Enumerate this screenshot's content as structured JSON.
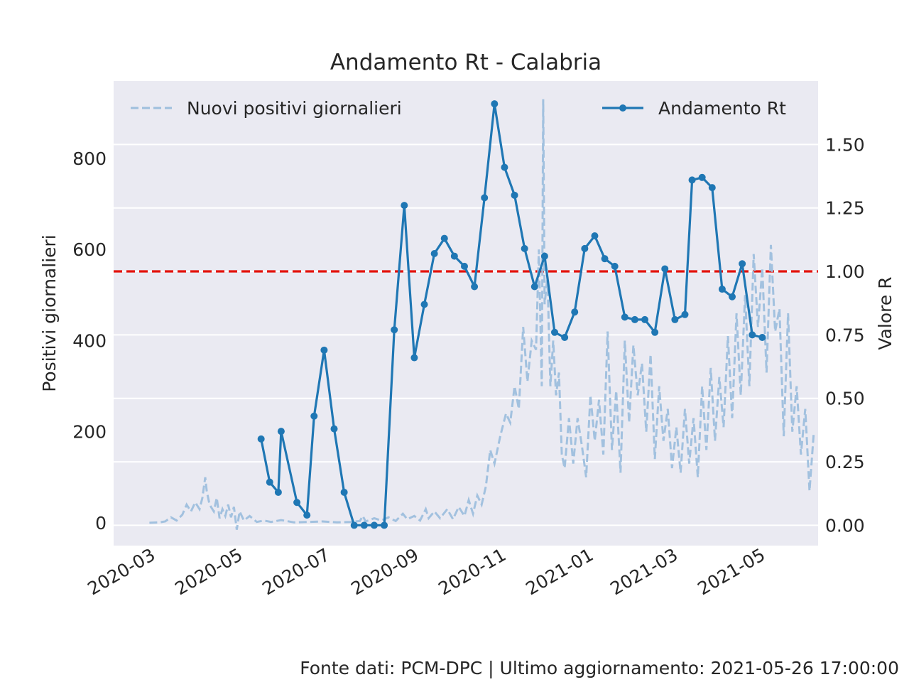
{
  "footer": "Fonte dati: PCM-DPC | Ultimo aggiornamento: 2021-05-26 17:00:00",
  "chart_data": {
    "type": "line",
    "title": "Andamento Rt - Calabria",
    "xlabel": "",
    "ylabel": "Positivi giornalieri",
    "ylabel_right": "Valore R",
    "xlim": [
      "2020-02-05",
      "2021-06-11"
    ],
    "ylim": [
      -50,
      970
    ],
    "ylim_right": [
      -0.08,
      1.75
    ],
    "x_ticks": [
      "2020-03",
      "2020-05",
      "2020-07",
      "2020-09",
      "2020-11",
      "2021-01",
      "2021-03",
      "2021-05"
    ],
    "y_ticks": [
      0,
      200,
      400,
      600,
      800
    ],
    "y_ticks_right": [
      "0.00",
      "0.25",
      "0.50",
      "0.75",
      "1.00",
      "1.25",
      "1.50"
    ],
    "grid": true,
    "reference_line": {
      "axis": "right",
      "value": 1.0,
      "color": "#e3120b",
      "style": "dashed"
    },
    "legend": [
      {
        "name": "Nuovi positivi giornalieri",
        "placement": "top-left"
      },
      {
        "name": "Andamento Rt",
        "placement": "top-right"
      }
    ],
    "colors": {
      "plot_bg": "#eaeaf2",
      "grid": "#ffffff",
      "rt": "#1f77b4",
      "daily": "#9ebfdd",
      "reference": "#e3120b"
    },
    "series": [
      {
        "name": "Nuovi positivi giornalieri",
        "axis": "left",
        "style": "dashed",
        "points": [
          [
            "2020-03-01",
            0
          ],
          [
            "2020-03-08",
            1
          ],
          [
            "2020-03-12",
            3
          ],
          [
            "2020-03-16",
            12
          ],
          [
            "2020-03-20",
            5
          ],
          [
            "2020-03-24",
            18
          ],
          [
            "2020-03-27",
            40
          ],
          [
            "2020-03-30",
            25
          ],
          [
            "2020-04-02",
            45
          ],
          [
            "2020-04-05",
            30
          ],
          [
            "2020-04-07",
            55
          ],
          [
            "2020-04-09",
            100
          ],
          [
            "2020-04-10",
            70
          ],
          [
            "2020-04-12",
            40
          ],
          [
            "2020-04-15",
            25
          ],
          [
            "2020-04-17",
            55
          ],
          [
            "2020-04-19",
            10
          ],
          [
            "2020-04-21",
            30
          ],
          [
            "2020-04-23",
            15
          ],
          [
            "2020-04-25",
            40
          ],
          [
            "2020-04-27",
            12
          ],
          [
            "2020-04-29",
            35
          ],
          [
            "2020-05-01",
            -15
          ],
          [
            "2020-05-03",
            25
          ],
          [
            "2020-05-06",
            5
          ],
          [
            "2020-05-10",
            15
          ],
          [
            "2020-05-15",
            2
          ],
          [
            "2020-05-20",
            5
          ],
          [
            "2020-05-25",
            2
          ],
          [
            "2020-06-01",
            6
          ],
          [
            "2020-06-10",
            1
          ],
          [
            "2020-06-20",
            2
          ],
          [
            "2020-06-30",
            3
          ],
          [
            "2020-07-10",
            1
          ],
          [
            "2020-07-20",
            2
          ],
          [
            "2020-07-26",
            4
          ],
          [
            "2020-07-28",
            15
          ],
          [
            "2020-07-30",
            3
          ],
          [
            "2020-08-05",
            10
          ],
          [
            "2020-08-10",
            5
          ],
          [
            "2020-08-15",
            12
          ],
          [
            "2020-08-20",
            4
          ],
          [
            "2020-08-25",
            20
          ],
          [
            "2020-08-28",
            8
          ],
          [
            "2020-09-02",
            15
          ],
          [
            "2020-09-06",
            5
          ],
          [
            "2020-09-10",
            30
          ],
          [
            "2020-09-12",
            10
          ],
          [
            "2020-09-16",
            25
          ],
          [
            "2020-09-20",
            10
          ],
          [
            "2020-09-25",
            30
          ],
          [
            "2020-09-29",
            8
          ],
          [
            "2020-10-03",
            35
          ],
          [
            "2020-10-07",
            15
          ],
          [
            "2020-10-10",
            50
          ],
          [
            "2020-10-13",
            20
          ],
          [
            "2020-10-16",
            60
          ],
          [
            "2020-10-19",
            40
          ],
          [
            "2020-10-22",
            80
          ],
          [
            "2020-10-25",
            160
          ],
          [
            "2020-10-28",
            130
          ],
          [
            "2020-11-01",
            190
          ],
          [
            "2020-11-05",
            240
          ],
          [
            "2020-11-08",
            220
          ],
          [
            "2020-11-11",
            300
          ],
          [
            "2020-11-14",
            250
          ],
          [
            "2020-11-17",
            430
          ],
          [
            "2020-11-20",
            310
          ],
          [
            "2020-11-23",
            400
          ],
          [
            "2020-11-26",
            380
          ],
          [
            "2020-11-28",
            600
          ],
          [
            "2020-11-30",
            300
          ],
          [
            "2020-12-01",
            930
          ],
          [
            "2020-12-02",
            480
          ],
          [
            "2020-12-04",
            540
          ],
          [
            "2020-12-06",
            300
          ],
          [
            "2020-12-08",
            400
          ],
          [
            "2020-12-10",
            280
          ],
          [
            "2020-12-12",
            330
          ],
          [
            "2020-12-14",
            150
          ],
          [
            "2020-12-16",
            120
          ],
          [
            "2020-12-19",
            230
          ],
          [
            "2020-12-22",
            130
          ],
          [
            "2020-12-25",
            230
          ],
          [
            "2020-12-28",
            170
          ],
          [
            "2020-12-31",
            100
          ],
          [
            "2021-01-03",
            280
          ],
          [
            "2021-01-06",
            180
          ],
          [
            "2021-01-09",
            270
          ],
          [
            "2021-01-12",
            150
          ],
          [
            "2021-01-15",
            420
          ],
          [
            "2021-01-18",
            160
          ],
          [
            "2021-01-21",
            290
          ],
          [
            "2021-01-24",
            110
          ],
          [
            "2021-01-27",
            400
          ],
          [
            "2021-01-30",
            220
          ],
          [
            "2021-02-02",
            390
          ],
          [
            "2021-02-05",
            280
          ],
          [
            "2021-02-08",
            350
          ],
          [
            "2021-02-11",
            200
          ],
          [
            "2021-02-14",
            370
          ],
          [
            "2021-02-17",
            140
          ],
          [
            "2021-02-20",
            300
          ],
          [
            "2021-02-23",
            180
          ],
          [
            "2021-02-26",
            250
          ],
          [
            "2021-03-01",
            120
          ],
          [
            "2021-03-04",
            210
          ],
          [
            "2021-03-07",
            110
          ],
          [
            "2021-03-10",
            250
          ],
          [
            "2021-03-13",
            130
          ],
          [
            "2021-03-16",
            230
          ],
          [
            "2021-03-19",
            100
          ],
          [
            "2021-03-22",
            300
          ],
          [
            "2021-03-25",
            160
          ],
          [
            "2021-03-28",
            340
          ],
          [
            "2021-03-31",
            180
          ],
          [
            "2021-04-03",
            320
          ],
          [
            "2021-04-06",
            210
          ],
          [
            "2021-04-09",
            410
          ],
          [
            "2021-04-12",
            230
          ],
          [
            "2021-04-15",
            460
          ],
          [
            "2021-04-18",
            280
          ],
          [
            "2021-04-21",
            500
          ],
          [
            "2021-04-24",
            300
          ],
          [
            "2021-04-27",
            590
          ],
          [
            "2021-04-30",
            430
          ],
          [
            "2021-05-03",
            560
          ],
          [
            "2021-05-06",
            330
          ],
          [
            "2021-05-09",
            610
          ],
          [
            "2021-05-12",
            420
          ],
          [
            "2021-05-15",
            470
          ],
          [
            "2021-05-18",
            190
          ],
          [
            "2021-05-21",
            460
          ],
          [
            "2021-05-24",
            200
          ],
          [
            "2021-05-27",
            300
          ],
          [
            "2021-05-30",
            150
          ],
          [
            "2021-06-02",
            250
          ],
          [
            "2021-06-05",
            70
          ],
          [
            "2021-06-08",
            200
          ]
        ]
      },
      {
        "name": "Andamento Rt",
        "axis": "right",
        "style": "solid-markers",
        "points": [
          [
            "2020-05-18",
            0.34
          ],
          [
            "2020-05-24",
            0.17
          ],
          [
            "2020-05-30",
            0.13
          ],
          [
            "2020-06-01",
            0.37
          ],
          [
            "2020-06-12",
            0.09
          ],
          [
            "2020-06-19",
            0.04
          ],
          [
            "2020-06-24",
            0.43
          ],
          [
            "2020-07-01",
            0.69
          ],
          [
            "2020-07-08",
            0.38
          ],
          [
            "2020-07-15",
            0.13
          ],
          [
            "2020-07-22",
            0.0
          ],
          [
            "2020-07-29",
            0.0
          ],
          [
            "2020-08-05",
            0.0
          ],
          [
            "2020-08-12",
            0.0
          ],
          [
            "2020-08-19",
            0.77
          ],
          [
            "2020-08-26",
            1.26
          ],
          [
            "2020-09-02",
            0.66
          ],
          [
            "2020-09-09",
            0.87
          ],
          [
            "2020-09-16",
            1.07
          ],
          [
            "2020-09-23",
            1.13
          ],
          [
            "2020-09-30",
            1.06
          ],
          [
            "2020-10-07",
            1.02
          ],
          [
            "2020-10-14",
            0.94
          ],
          [
            "2020-10-21",
            1.29
          ],
          [
            "2020-10-28",
            1.66
          ],
          [
            "2020-11-04",
            1.41
          ],
          [
            "2020-11-11",
            1.3
          ],
          [
            "2020-11-18",
            1.09
          ],
          [
            "2020-11-25",
            0.94
          ],
          [
            "2020-12-02",
            1.06
          ],
          [
            "2020-12-09",
            0.76
          ],
          [
            "2020-12-16",
            0.74
          ],
          [
            "2020-12-23",
            0.84
          ],
          [
            "2020-12-30",
            1.09
          ],
          [
            "2021-01-06",
            1.14
          ],
          [
            "2021-01-13",
            1.05
          ],
          [
            "2021-01-20",
            1.02
          ],
          [
            "2021-01-27",
            0.82
          ],
          [
            "2021-02-03",
            0.81
          ],
          [
            "2021-02-10",
            0.81
          ],
          [
            "2021-02-17",
            0.76
          ],
          [
            "2021-02-24",
            1.01
          ],
          [
            "2021-03-03",
            0.81
          ],
          [
            "2021-03-10",
            0.83
          ],
          [
            "2021-03-15",
            1.36
          ],
          [
            "2021-03-22",
            1.37
          ],
          [
            "2021-03-29",
            1.33
          ],
          [
            "2021-04-05",
            0.93
          ],
          [
            "2021-04-12",
            0.9
          ],
          [
            "2021-04-19",
            1.03
          ],
          [
            "2021-04-26",
            0.75
          ],
          [
            "2021-05-03",
            0.74
          ]
        ]
      }
    ]
  }
}
